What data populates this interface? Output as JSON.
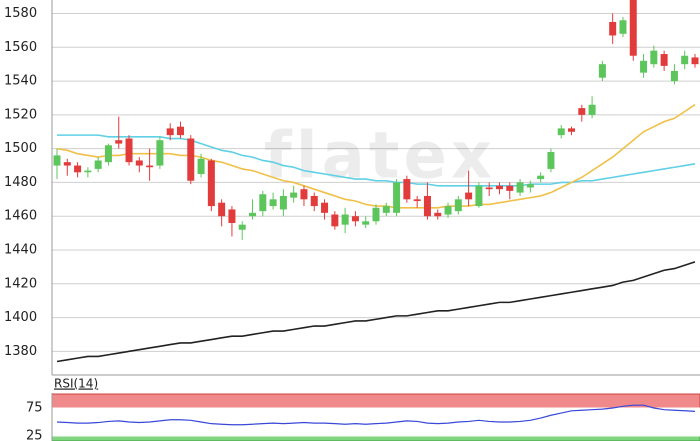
{
  "chart_data": [
    {
      "type": "candlestick",
      "watermark": "flatex",
      "ylim": [
        1366,
        1588
      ],
      "yticks": [
        1380,
        1400,
        1420,
        1440,
        1460,
        1480,
        1500,
        1520,
        1540,
        1560,
        1580
      ],
      "grid": true,
      "up_color": "#5cc65c",
      "down_color": "#e23b3b",
      "open": [
        1490,
        1492,
        1490,
        1486,
        1488,
        1492,
        1505,
        1506,
        1493,
        1490,
        1490,
        1512,
        1513,
        1506,
        1485,
        1493,
        1468,
        1464,
        1452,
        1460,
        1463,
        1466,
        1464,
        1471,
        1476,
        1472,
        1468,
        1461,
        1455,
        1460,
        1455,
        1457,
        1462,
        1462,
        1482,
        1470,
        1472,
        1462,
        1461,
        1463,
        1474,
        1466,
        1477,
        1478,
        1478,
        1474,
        1477,
        1482,
        1488,
        1508,
        1512,
        1524,
        1520,
        1542,
        1575,
        1568,
        1590,
        1545,
        1550,
        1556,
        1540,
        1550,
        1554
      ],
      "high": [
        1500,
        1494,
        1492,
        1489,
        1495,
        1503,
        1519,
        1508,
        1495,
        1500,
        1507,
        1515,
        1516,
        1508,
        1497,
        1494,
        1470,
        1466,
        1457,
        1470,
        1475,
        1474,
        1476,
        1478,
        1478,
        1474,
        1470,
        1463,
        1465,
        1463,
        1460,
        1467,
        1468,
        1482,
        1484,
        1472,
        1480,
        1464,
        1468,
        1472,
        1487,
        1480,
        1480,
        1480,
        1480,
        1482,
        1481,
        1486,
        1500,
        1514,
        1513,
        1526,
        1531,
        1552,
        1580,
        1578,
        1592,
        1556,
        1561,
        1558,
        1550,
        1558,
        1556
      ],
      "low": [
        1482,
        1484,
        1483,
        1483,
        1486,
        1490,
        1500,
        1490,
        1486,
        1481,
        1488,
        1505,
        1506,
        1479,
        1483,
        1463,
        1454,
        1448,
        1446,
        1458,
        1460,
        1464,
        1460,
        1468,
        1466,
        1463,
        1458,
        1452,
        1450,
        1454,
        1453,
        1455,
        1460,
        1460,
        1468,
        1465,
        1458,
        1458,
        1459,
        1461,
        1466,
        1465,
        1472,
        1473,
        1470,
        1472,
        1474,
        1480,
        1486,
        1506,
        1508,
        1516,
        1518,
        1540,
        1562,
        1566,
        1552,
        1542,
        1548,
        1546,
        1538,
        1547,
        1548
      ],
      "close": [
        1496,
        1490,
        1486,
        1487,
        1493,
        1502,
        1503,
        1492,
        1490,
        1489,
        1505,
        1508,
        1508,
        1481,
        1494,
        1466,
        1460,
        1456,
        1455,
        1462,
        1473,
        1470,
        1472,
        1474,
        1470,
        1466,
        1462,
        1454,
        1461,
        1457,
        1457,
        1465,
        1466,
        1480,
        1470,
        1469,
        1460,
        1460,
        1466,
        1470,
        1470,
        1478,
        1476,
        1476,
        1475,
        1480,
        1479,
        1484,
        1498,
        1512,
        1510,
        1520,
        1526,
        1550,
        1567,
        1576,
        1555,
        1552,
        1558,
        1549,
        1546,
        1555,
        1550
      ],
      "series": [
        {
          "color": "#5fd0e6",
          "values": [
            1508,
            1508,
            1508,
            1508,
            1508,
            1507,
            1507,
            1507,
            1507,
            1507,
            1507,
            1506,
            1506,
            1505,
            1503,
            1501,
            1499,
            1498,
            1496,
            1495,
            1493,
            1492,
            1490,
            1489,
            1487,
            1486,
            1485,
            1484,
            1483,
            1482,
            1482,
            1481,
            1481,
            1480,
            1480,
            1479,
            1479,
            1478,
            1478,
            1478,
            1478,
            1478,
            1478,
            1478,
            1478,
            1478,
            1479,
            1479,
            1479,
            1480,
            1480,
            1481,
            1481,
            1482,
            1483,
            1484,
            1485,
            1486,
            1487,
            1488,
            1489,
            1490,
            1491
          ]
        },
        {
          "color": "#f0c048",
          "values": [
            1500,
            1499,
            1497,
            1496,
            1495,
            1496,
            1496,
            1497,
            1497,
            1497,
            1497,
            1497,
            1496,
            1496,
            1495,
            1493,
            1492,
            1490,
            1488,
            1487,
            1485,
            1483,
            1481,
            1480,
            1478,
            1476,
            1474,
            1472,
            1470,
            1469,
            1467,
            1466,
            1466,
            1465,
            1465,
            1465,
            1465,
            1465,
            1466,
            1466,
            1466,
            1467,
            1467,
            1468,
            1469,
            1470,
            1471,
            1472,
            1474,
            1477,
            1480,
            1483,
            1487,
            1491,
            1495,
            1500,
            1505,
            1510,
            1513,
            1516,
            1518,
            1522,
            1526
          ]
        },
        {
          "color": "#222222",
          "values": [
            1374,
            1375,
            1376,
            1377,
            1377,
            1378,
            1379,
            1380,
            1381,
            1382,
            1383,
            1384,
            1385,
            1385,
            1386,
            1387,
            1388,
            1389,
            1389,
            1390,
            1391,
            1392,
            1392,
            1393,
            1394,
            1395,
            1395,
            1396,
            1397,
            1398,
            1398,
            1399,
            1400,
            1401,
            1401,
            1402,
            1403,
            1404,
            1404,
            1405,
            1406,
            1407,
            1408,
            1409,
            1409,
            1410,
            1411,
            1412,
            1413,
            1414,
            1415,
            1416,
            1417,
            1418,
            1419,
            1421,
            1422,
            1424,
            1426,
            1428,
            1429,
            1431,
            1433
          ]
        }
      ]
    },
    {
      "type": "line",
      "title": "RSI(14)",
      "ylim": [
        16,
        100
      ],
      "yticks": [
        75,
        25
      ],
      "upper_zone_color": "#f08a8a",
      "lower_zone_color": "#7fd67f",
      "series": [
        {
          "color": "#3848d8",
          "values": [
            50,
            49,
            48,
            48,
            49,
            51,
            52,
            50,
            49,
            50,
            52,
            54,
            54,
            53,
            50,
            47,
            46,
            45,
            45,
            46,
            47,
            48,
            47,
            48,
            49,
            48,
            48,
            47,
            46,
            47,
            46,
            47,
            48,
            50,
            52,
            51,
            48,
            47,
            48,
            50,
            51,
            53,
            51,
            50,
            50,
            51,
            53,
            57,
            62,
            66,
            70,
            71,
            72,
            73,
            75,
            78,
            80,
            80,
            75,
            72,
            71,
            70,
            69
          ]
        }
      ]
    }
  ]
}
